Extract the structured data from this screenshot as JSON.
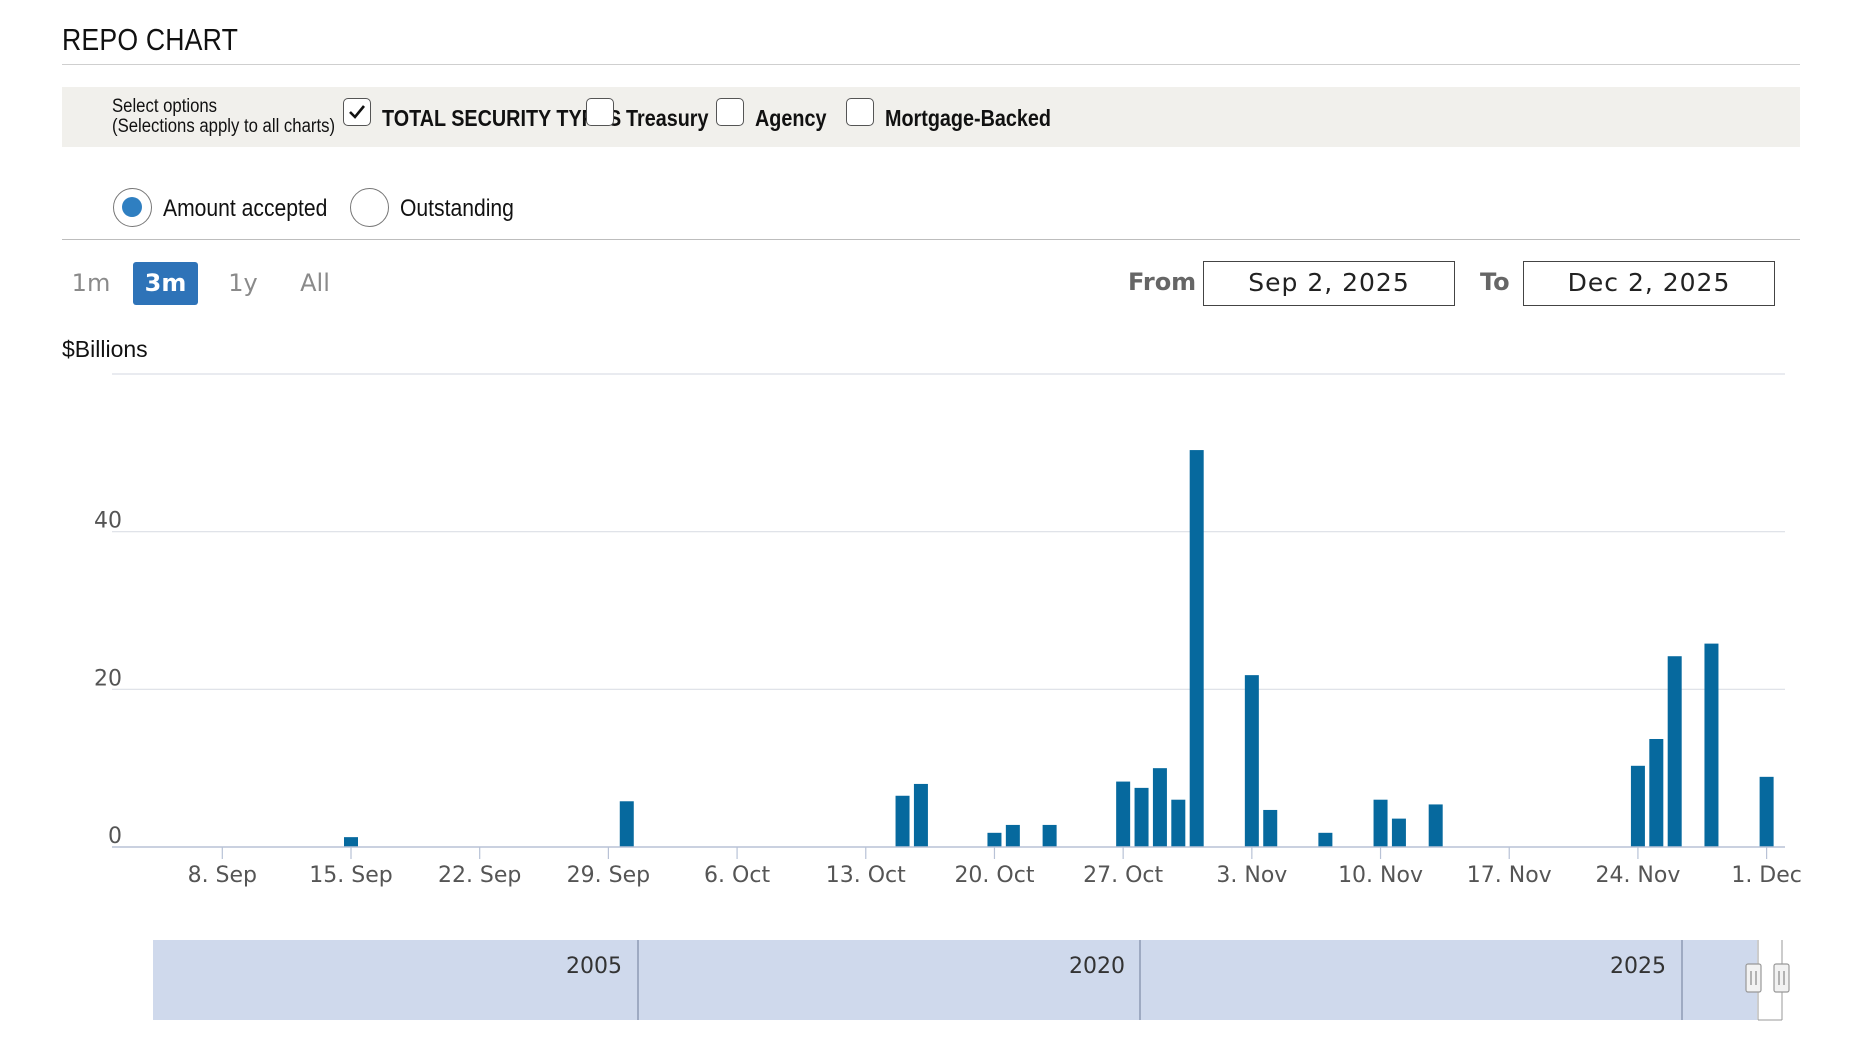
{
  "header": {
    "title": "REPO CHART"
  },
  "options": {
    "select_label_line1": "Select options",
    "select_label_line2": "(Selections apply to all charts)",
    "checkboxes": [
      {
        "label": "TOTAL SECURITY TYPES",
        "checked": true
      },
      {
        "label": "Treasury",
        "checked": false
      },
      {
        "label": "Agency",
        "checked": false
      },
      {
        "label": "Mortgage-Backed",
        "checked": false
      }
    ],
    "radios": [
      {
        "label": "Amount accepted",
        "selected": true
      },
      {
        "label": "Outstanding",
        "selected": false
      }
    ]
  },
  "range": {
    "buttons": [
      "1m",
      "3m",
      "1y",
      "All"
    ],
    "active": "3m",
    "from_label": "From",
    "to_label": "To",
    "from_value": "Sep 2, 2025",
    "to_value": "Dec 2, 2025"
  },
  "colors": {
    "bar": "#06699e",
    "accent": "#2e73b8",
    "navigator": "#cfd9ec",
    "grid": "#dcdfe6"
  },
  "chart_data": {
    "type": "bar",
    "ylabel": "$Billions",
    "ylim": [
      0,
      60
    ],
    "yticks": [
      0,
      20,
      40
    ],
    "grid": true,
    "xlim": [
      "2025-09-02",
      "2025-12-02"
    ],
    "xticks": [
      {
        "date": "2025-09-08",
        "label": "8. Sep"
      },
      {
        "date": "2025-09-15",
        "label": "15. Sep"
      },
      {
        "date": "2025-09-22",
        "label": "22. Sep"
      },
      {
        "date": "2025-09-29",
        "label": "29. Sep"
      },
      {
        "date": "2025-10-06",
        "label": "6. Oct"
      },
      {
        "date": "2025-10-13",
        "label": "13. Oct"
      },
      {
        "date": "2025-10-20",
        "label": "20. Oct"
      },
      {
        "date": "2025-10-27",
        "label": "27. Oct"
      },
      {
        "date": "2025-11-03",
        "label": "3. Nov"
      },
      {
        "date": "2025-11-10",
        "label": "10. Nov"
      },
      {
        "date": "2025-11-17",
        "label": "17. Nov"
      },
      {
        "date": "2025-11-24",
        "label": "24. Nov"
      },
      {
        "date": "2025-12-01",
        "label": "1. Dec"
      }
    ],
    "series": [
      {
        "points": [
          {
            "date": "2025-09-15",
            "value": 1.25
          },
          {
            "date": "2025-09-30",
            "value": 5.8
          },
          {
            "date": "2025-10-15",
            "value": 6.5
          },
          {
            "date": "2025-10-16",
            "value": 8.0
          },
          {
            "date": "2025-10-20",
            "value": 1.8
          },
          {
            "date": "2025-10-21",
            "value": 2.8
          },
          {
            "date": "2025-10-23",
            "value": 2.8
          },
          {
            "date": "2025-10-27",
            "value": 8.3
          },
          {
            "date": "2025-10-28",
            "value": 7.5
          },
          {
            "date": "2025-10-29",
            "value": 10.0
          },
          {
            "date": "2025-10-30",
            "value": 6.0
          },
          {
            "date": "2025-10-31",
            "value": 50.35
          },
          {
            "date": "2025-11-03",
            "value": 21.8
          },
          {
            "date": "2025-11-04",
            "value": 4.7
          },
          {
            "date": "2025-11-07",
            "value": 1.8
          },
          {
            "date": "2025-11-10",
            "value": 6.0
          },
          {
            "date": "2025-11-11",
            "value": 3.6
          },
          {
            "date": "2025-11-13",
            "value": 5.4
          },
          {
            "date": "2025-11-24",
            "value": 10.3
          },
          {
            "date": "2025-11-25",
            "value": 13.7
          },
          {
            "date": "2025-11-26",
            "value": 24.2
          },
          {
            "date": "2025-11-28",
            "value": 25.8
          },
          {
            "date": "2025-12-01",
            "value": 8.9
          }
        ]
      }
    ]
  },
  "navigator": {
    "years": [
      "2005",
      "2020",
      "2025"
    ]
  }
}
